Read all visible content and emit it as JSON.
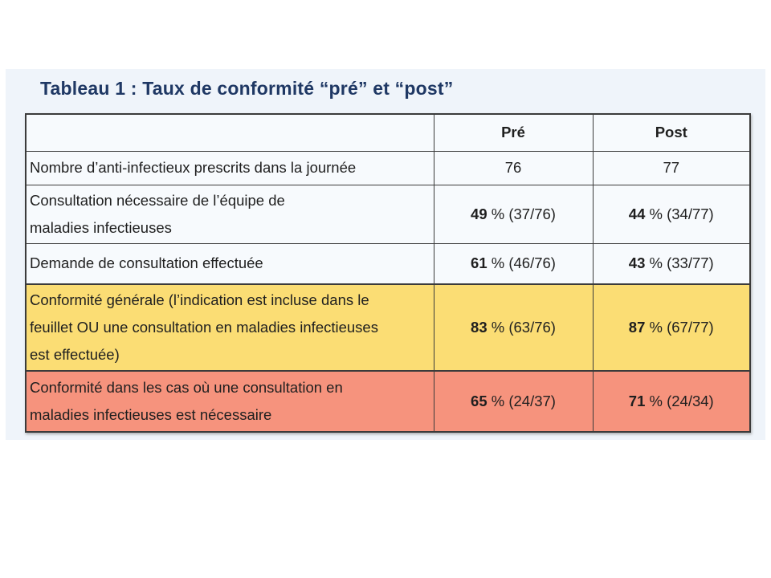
{
  "colors": {
    "page_background": "#FFFFFF",
    "panel_background": "#EFF4FA",
    "default_row_background": "#F7FAFD",
    "highlight_yellow": "#FBDD74",
    "highlight_salmon": "#F6937D",
    "title_color": "#1F3864",
    "border_color": "#3B3B3B",
    "text_color": "#1F1F1F"
  },
  "title": "Tableau 1 : Taux de conformité “pré” et “post”",
  "table": {
    "headers": {
      "label": "",
      "pre": "Pré",
      "post": "Post"
    },
    "rows": [
      {
        "label_lines": [
          "Nombre d’anti-infectieux prescrits dans la journée"
        ],
        "pre": "76",
        "post": "77",
        "background": "#F7FAFD"
      },
      {
        "label_lines": [
          "Consultation nécessaire de l’équipe de",
          "maladies infectieuses"
        ],
        "pre_bold": "49",
        "pre_rest": " % (37/76)",
        "post_bold": "44",
        "post_rest": " % (34/77)",
        "background": "#F7FAFD"
      },
      {
        "label_lines": [
          "Demande de consultation effectuée"
        ],
        "pre_bold": "61",
        "pre_rest": " % (46/76)",
        "post_bold": "43",
        "post_rest": " % (33/77)",
        "background": "#F7FAFD"
      },
      {
        "label_lines": [
          "Conformité générale (l’indication est incluse dans le",
          "feuillet OU une consultation en maladies infectieuses",
          "est effectuée)"
        ],
        "pre_bold": "83",
        "pre_rest": " % (63/76)",
        "post_bold": "87",
        "post_rest": " % (67/77)",
        "background": "#FBDD74"
      },
      {
        "label_lines": [
          "Conformité dans les cas où une consultation en",
          "maladies infectieuses est nécessaire"
        ],
        "pre_bold": "65",
        "pre_rest": " % (24/37)",
        "post_bold": "71",
        "post_rest": " % (24/34)",
        "background": "#F6937D"
      }
    ]
  }
}
